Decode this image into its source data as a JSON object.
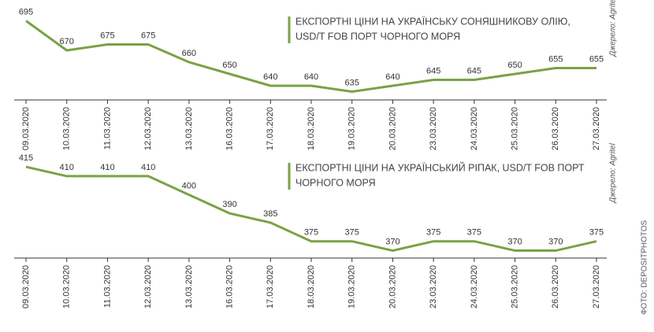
{
  "chart_data": [
    {
      "type": "line",
      "title": [
        "ЕКСПОРТНІ ЦІНИ НА УКРАЇНСЬКУ СОНЯШНИКОВУ ОЛІЮ,",
        "USD/T FOB ПОРТ ЧОРНОГО МОРЯ"
      ],
      "source": "Джерело: Agritel",
      "categories": [
        "09.03.2020",
        "10.03.2020",
        "11.03.2020",
        "12.03.2020",
        "13.03.2020",
        "16.03.2020",
        "17.03.2020",
        "18.03.2020",
        "19.03.2020",
        "20.03.2020",
        "23.03.2020",
        "24.03.2020",
        "25.03.2020",
        "26.03.2020",
        "27.03.2020"
      ],
      "values": [
        695,
        670,
        675,
        675,
        660,
        650,
        640,
        640,
        635,
        640,
        645,
        645,
        650,
        655,
        655
      ],
      "color": "#7aa245",
      "ylim": [
        628,
        700
      ]
    },
    {
      "type": "line",
      "title": [
        "ЕКСПОРТНІ ЦІНИ НА УКРАЇНСЬКИЙ РІПАК, USD/T FOB ПОРТ",
        "ЧОРНОГО МОРЯ"
      ],
      "source": "Джерело: Agritel",
      "categories": [
        "09.03.2020",
        "10.03.2020",
        "11.03.2020",
        "12.03.2020",
        "13.03.2020",
        "16.03.2020",
        "17.03.2020",
        "18.03.2020",
        "19.03.2020",
        "20.03.2020",
        "23.03.2020",
        "24.03.2020",
        "25.03.2020",
        "26.03.2020",
        "27.03.2020"
      ],
      "values": [
        415,
        410,
        410,
        410,
        400,
        390,
        385,
        375,
        375,
        370,
        375,
        375,
        370,
        370,
        375
      ],
      "color": "#7aa245",
      "ylim": [
        366,
        418
      ]
    }
  ],
  "credit": "ФОТО: DEPOSITPHOTOS"
}
